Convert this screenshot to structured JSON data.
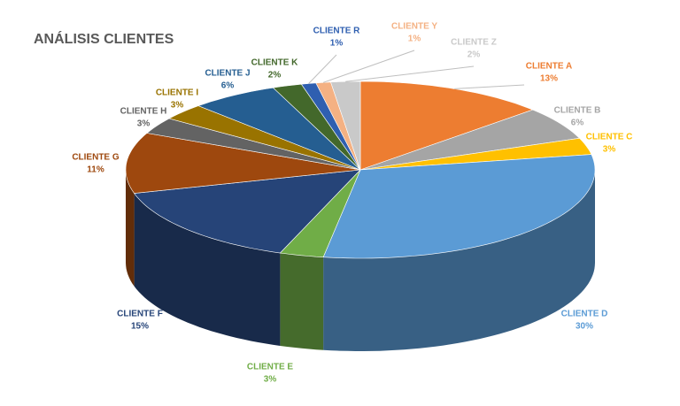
{
  "chart_data": {
    "type": "pie3d",
    "title": "ANÁLISIS CLIENTES",
    "categories": [
      "CLIENTE A",
      "CLIENTE B",
      "CLIENTE C",
      "CLIENTE D",
      "CLIENTE E",
      "CLIENTE F",
      "CLIENTE G",
      "CLIENTE H",
      "CLIENTE I",
      "CLIENTE J",
      "CLIENTE K",
      "CLIENTE R",
      "CLIENTE Y",
      "CLIENTE Z"
    ],
    "values": [
      13,
      6,
      3,
      30,
      3,
      15,
      11,
      3,
      3,
      6,
      2,
      1,
      1,
      2
    ],
    "value_labels": [
      "13%",
      "6%",
      "3%",
      "30%",
      "3%",
      "15%",
      "11%",
      "3%",
      "3%",
      "6%",
      "2%",
      "1%",
      "1%",
      "2%"
    ],
    "colors": [
      "#ed7d31",
      "#a5a5a5",
      "#ffc000",
      "#5b9bd5",
      "#70ad47",
      "#264478",
      "#9e480e",
      "#636363",
      "#997300",
      "#255e91",
      "#43682b",
      "#2f5fb0",
      "#f4b183",
      "#c9c9c9"
    ]
  }
}
